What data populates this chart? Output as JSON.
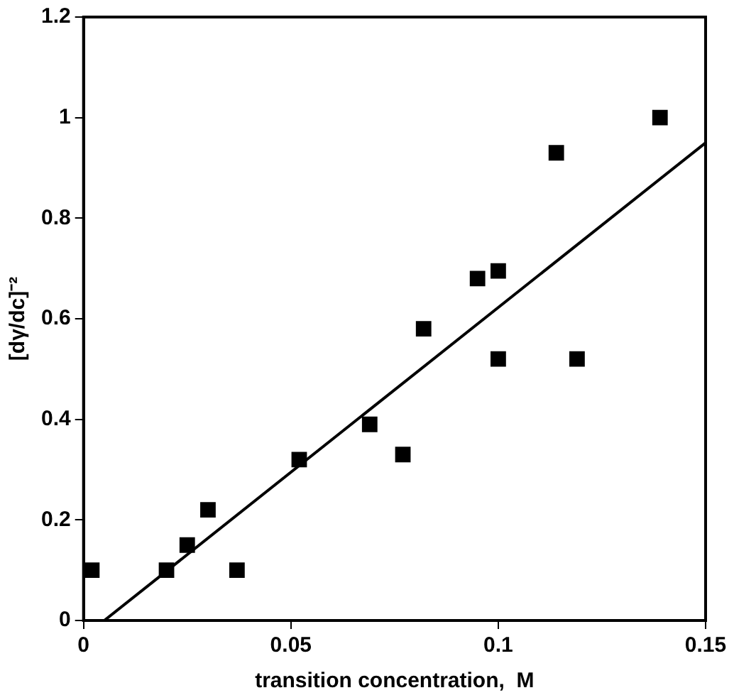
{
  "chart_data": {
    "type": "scatter",
    "xlabel": "transition concentration,  M",
    "ylabel": "[dγ/dc]⁻²",
    "xlim": [
      0,
      0.15
    ],
    "xticks": [
      0,
      0.05,
      0.1,
      0.15
    ],
    "ylim": [
      0,
      1.2
    ],
    "yticks": [
      0,
      0.2,
      0.4,
      0.6,
      0.8,
      1,
      1.2
    ],
    "grid": false,
    "legend": false,
    "marker": "square",
    "series": [
      {
        "color": "#000000",
        "x": [
          0.002,
          0.02,
          0.025,
          0.03,
          0.037,
          0.052,
          0.069,
          0.077,
          0.082,
          0.095,
          0.1,
          0.1,
          0.114,
          0.119,
          0.139
        ],
        "values": [
          0.1,
          0.1,
          0.15,
          0.22,
          0.1,
          0.32,
          0.39,
          0.33,
          0.58,
          0.68,
          0.695,
          0.52,
          0.93,
          0.52,
          1.0
        ]
      },
      {
        "type": "line",
        "color": "#000000",
        "marker": "none",
        "x": [
          0.005,
          0.15
        ],
        "values": [
          0,
          0.95
        ]
      }
    ]
  }
}
